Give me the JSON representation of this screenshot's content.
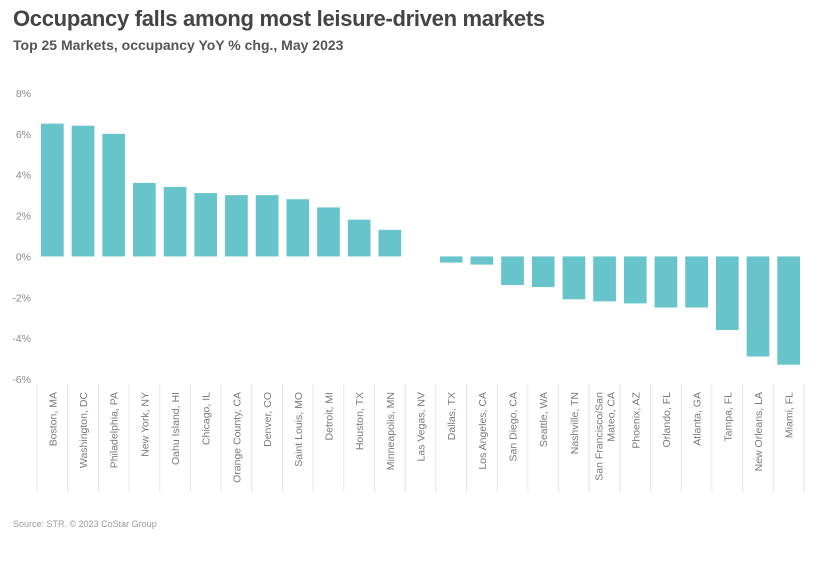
{
  "title": "Occupancy falls among most leisure-driven markets",
  "subtitle": "Top 25 Markets, occupancy YoY % chg., May 2023",
  "source": "Source: STR. © 2023 CoStar Group",
  "colors": {
    "bar": "#67c4cb",
    "grid": "#e6e6e6",
    "axis": "#bbbbbb"
  },
  "chart_data": {
    "type": "bar",
    "title": "Occupancy falls among most leisure-driven markets",
    "subtitle": "Top 25 Markets, occupancy YoY % chg., May 2023",
    "xlabel": "",
    "ylabel": "",
    "ylim": [
      -6,
      8
    ],
    "yticks": [
      8,
      6,
      4,
      2,
      0,
      -2,
      -4,
      -6
    ],
    "ytick_labels": [
      "8%",
      "6%",
      "4%",
      "2%",
      "0%",
      "-2%",
      "-4%",
      "-6%"
    ],
    "grid": false,
    "legend": "none",
    "categories": [
      "Boston, MA",
      "Washington, DC",
      "Philadelphia, PA",
      "New York, NY",
      "Oahu Island, HI",
      "Chicago, IL",
      "Orange County, CA",
      "Denver, CO",
      "Saint Louis, MO",
      "Detroit, MI",
      "Houston, TX",
      "Minneapolis, MN",
      "Las Vegas, NV",
      "Dallas, TX",
      "Los Angeles, CA",
      "San Diego, CA",
      "Seattle, WA",
      "Nashville, TN",
      "San Francisco/San Mateo, CA",
      "Phoenix, AZ",
      "Orlando, FL",
      "Atlanta, GA",
      "Tampa, FL",
      "New Orleans, LA",
      "Miami, FL"
    ],
    "values": [
      6.5,
      6.4,
      6.0,
      3.6,
      3.4,
      3.1,
      3.0,
      3.0,
      2.8,
      2.4,
      1.8,
      1.3,
      0.0,
      -0.3,
      -0.4,
      -1.4,
      -1.5,
      -2.1,
      -2.2,
      -2.3,
      -2.5,
      -2.5,
      -3.6,
      -4.9,
      -5.3
    ]
  }
}
